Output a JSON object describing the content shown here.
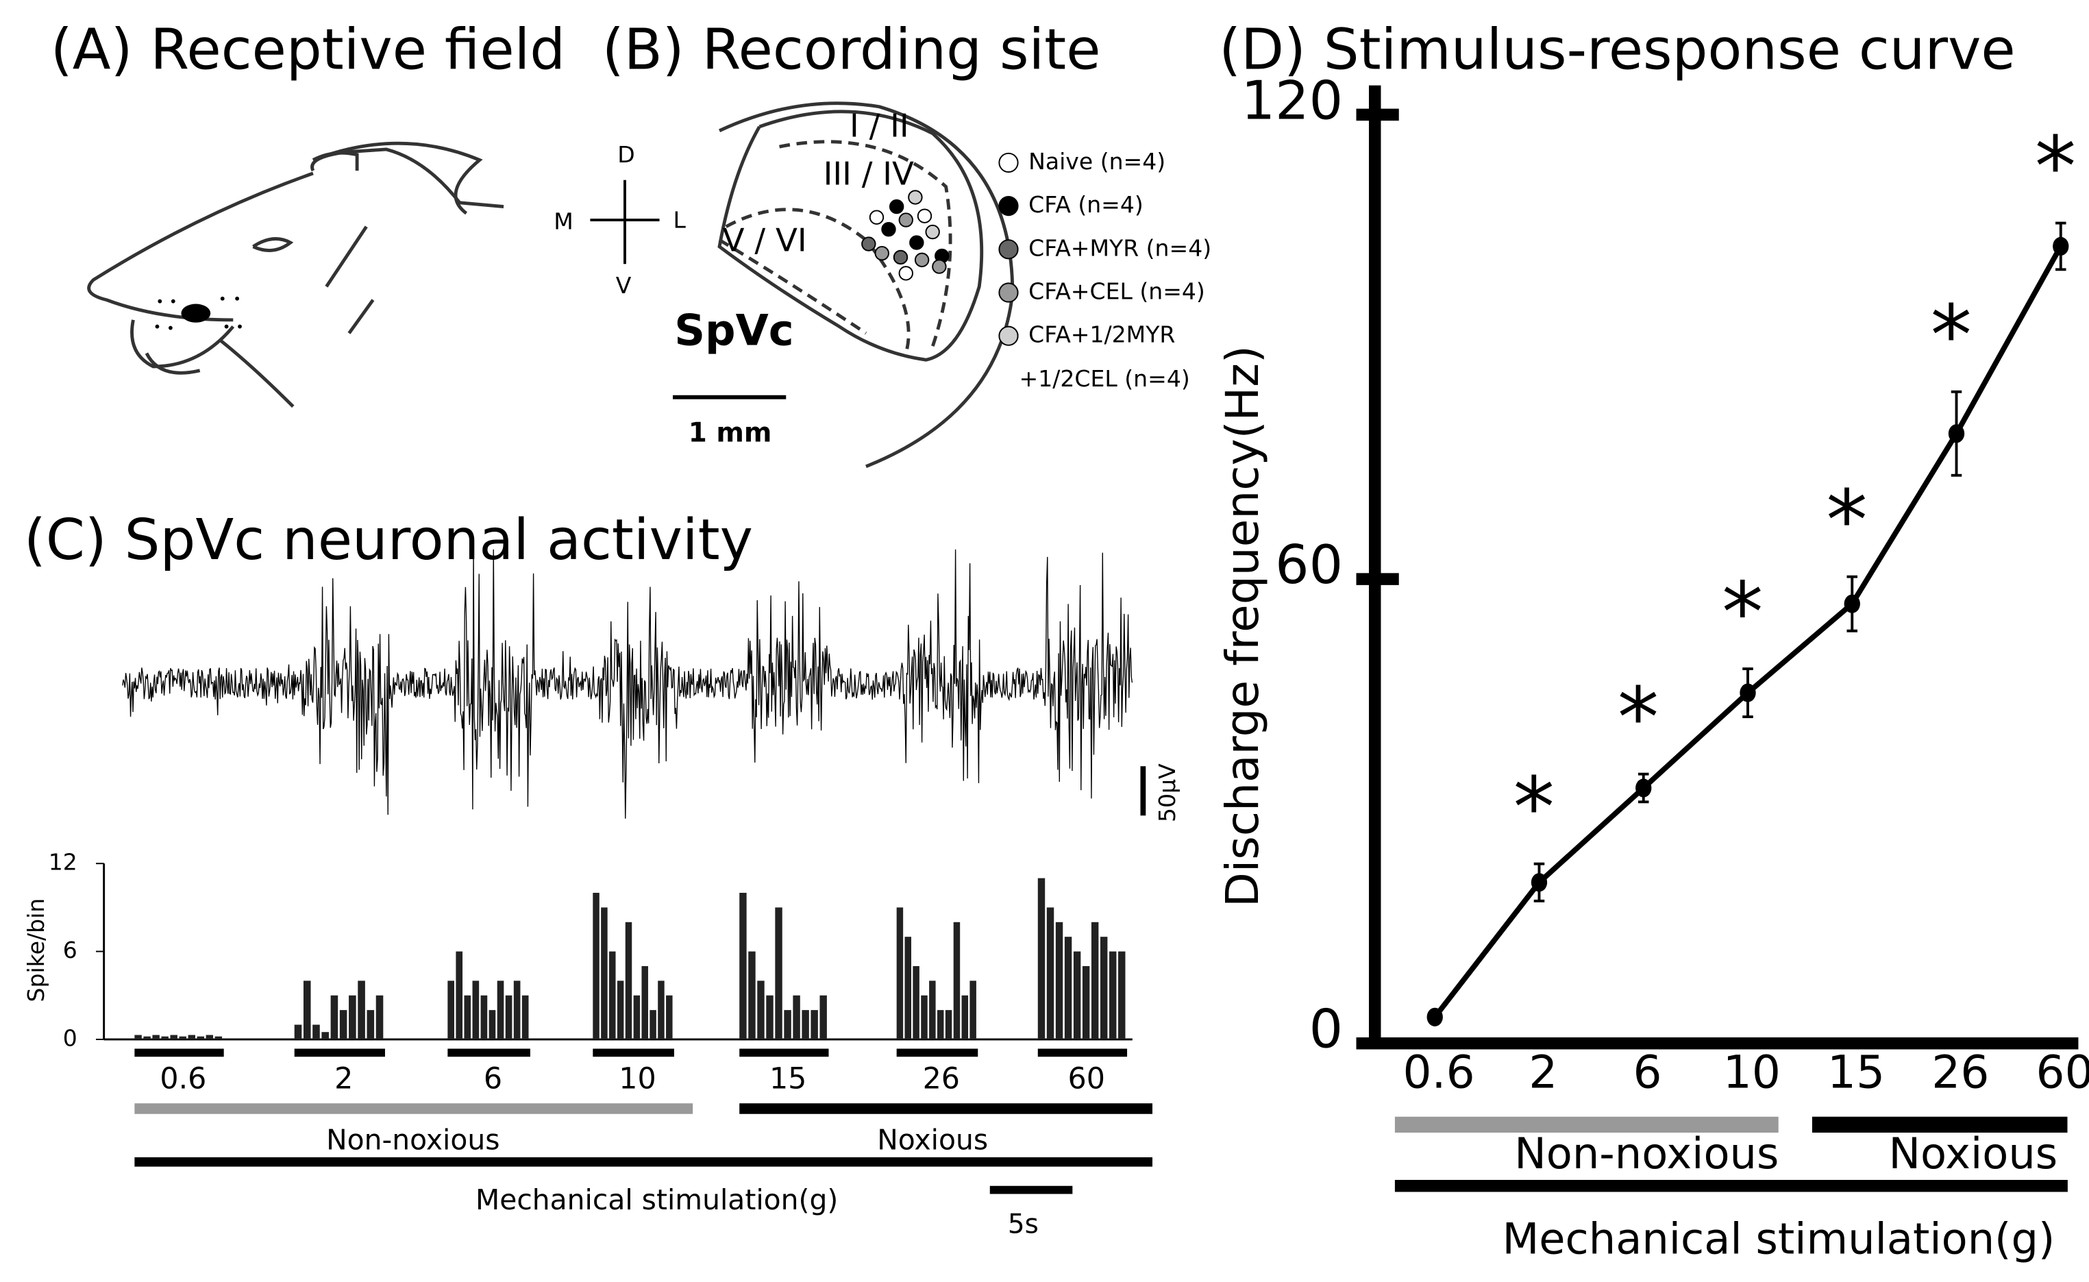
{
  "panel_a": {
    "title": "(A) Receptive field"
  },
  "panel_b": {
    "title": "(B) Recording site",
    "orientation": {
      "dorsal": "D",
      "medial": "M",
      "lateral": "L",
      "ventral": "V"
    },
    "laminae": [
      "I / II",
      "III / IV",
      "V / VI"
    ],
    "region": "SpVc",
    "scale": "1 mm",
    "legend": [
      {
        "lines": [
          "Naive (n=4)"
        ],
        "color": "#ffffff"
      },
      {
        "lines": [
          "CFA (n=4)"
        ],
        "color": "#000000"
      },
      {
        "lines": [
          "CFA+MYR (n=4)"
        ],
        "color": "#666666"
      },
      {
        "lines": [
          "CFA+CEL (n=4)"
        ],
        "color": "#999999"
      },
      {
        "lines": [
          "CFA+1/2MYR",
          "+1/2CEL (n=4)"
        ],
        "color": "#d0d0d0"
      }
    ]
  },
  "panel_c": {
    "title": "(C) SpVc neuronal activity",
    "voltage_scale": "50µV",
    "histogram": {
      "ylabel": "Spike/bin",
      "ylim": [
        0,
        12
      ],
      "yticks": [
        0,
        6,
        12
      ],
      "blocks": [
        [
          0.3,
          0.2,
          0.3,
          0.2,
          0.3,
          0.2,
          0.3,
          0.2,
          0.3,
          0.2
        ],
        [
          1,
          4,
          1,
          0.5,
          3,
          2,
          3,
          4,
          2,
          3
        ],
        [
          4,
          6,
          3,
          4,
          3,
          2,
          4,
          3,
          4,
          3
        ],
        [
          10,
          9,
          6,
          4,
          8,
          3,
          5,
          2,
          4,
          3
        ],
        [
          10,
          6,
          4,
          3,
          9,
          2,
          3,
          2,
          2,
          3
        ],
        [
          9,
          7,
          5,
          3,
          4,
          2,
          2,
          8,
          3,
          4
        ],
        [
          11,
          9,
          8,
          7,
          6,
          5,
          8,
          7,
          6,
          6
        ]
      ]
    },
    "stimuli": [
      "0.6",
      "2",
      "6",
      "10",
      "15",
      "26",
      "60"
    ],
    "groups": [
      "Non-noxious",
      "Noxious"
    ],
    "xlabel": "Mechanical stimulation(g)",
    "time_scale": "5s"
  },
  "chart_data": {
    "type": "line",
    "title": "(D) Stimulus-response curve",
    "ylabel": "Discharge frequency(Hz)",
    "xlabel": "Mechanical stimulation(g)",
    "categories": [
      "0.6",
      "2",
      "6",
      "10",
      "15",
      "26",
      "60"
    ],
    "values": [
      3.4,
      20.8,
      33,
      45.3,
      56.8,
      78.8,
      103
    ],
    "errors": [
      0.5,
      2.4,
      1.8,
      3.1,
      3.5,
      5.4,
      3
    ],
    "significance": [
      null,
      "*",
      "*",
      "*",
      "*",
      "*",
      "*"
    ],
    "color": "#000000",
    "ylim": [
      0,
      120
    ],
    "yticks": [
      0,
      60,
      120
    ],
    "groups": [
      {
        "label": "Non-noxious",
        "span": [
          0,
          3
        ],
        "color": "#999999"
      },
      {
        "label": "Noxious",
        "span": [
          4,
          6
        ],
        "color": "#000000"
      }
    ]
  }
}
